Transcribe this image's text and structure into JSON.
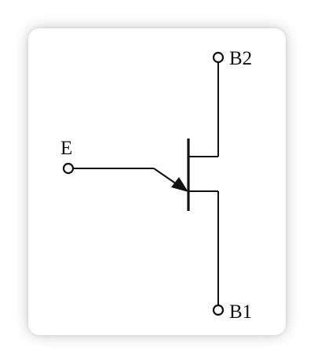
{
  "diagram": {
    "component": "unijunction-transistor",
    "terminals": {
      "emitter": "E",
      "base2": "B2",
      "base1": "B1"
    },
    "colors": {
      "background": "#ffffff",
      "card": "#ffffff",
      "stroke": "#111111"
    }
  }
}
